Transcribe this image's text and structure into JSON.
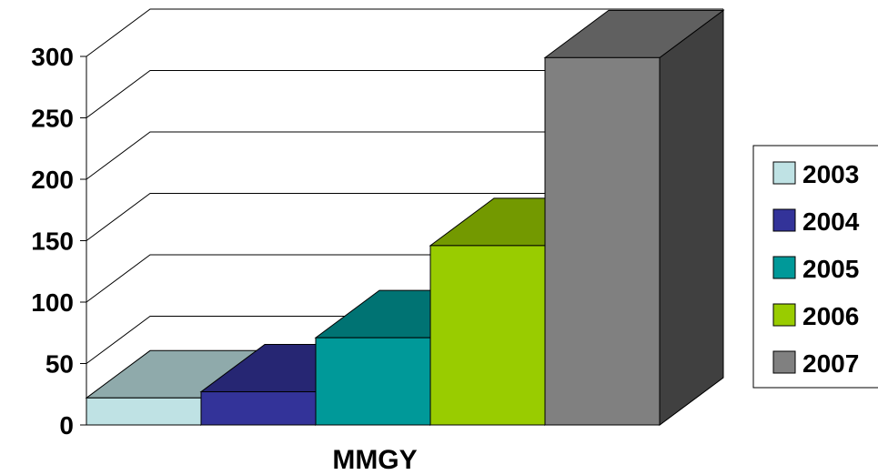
{
  "chart_data": {
    "type": "bar",
    "three_d": true,
    "xlabel": "MMGY",
    "categories": [
      "MMGY"
    ],
    "series": [
      {
        "name": "2003",
        "values": [
          22
        ],
        "color": "#BFE2E4"
      },
      {
        "name": "2004",
        "values": [
          27
        ],
        "color": "#333399"
      },
      {
        "name": "2005",
        "values": [
          71
        ],
        "color": "#009999"
      },
      {
        "name": "2006",
        "values": [
          146
        ],
        "color": "#99CC00"
      },
      {
        "name": "2007",
        "values": [
          299
        ],
        "color": "#808080"
      }
    ],
    "ylim": [
      0,
      300
    ],
    "yticks": [
      "0",
      "50",
      "100",
      "150",
      "200",
      "250",
      "300"
    ],
    "grid": true,
    "legend": "right"
  }
}
